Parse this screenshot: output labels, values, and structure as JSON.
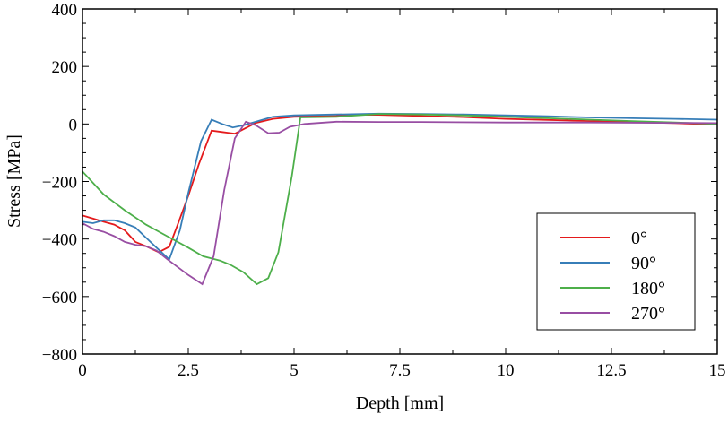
{
  "chart_data": {
    "type": "line",
    "title": "",
    "xlabel": "Depth [mm]",
    "ylabel": "Stress [MPa]",
    "xlim": [
      0,
      15
    ],
    "ylim": [
      -800,
      400
    ],
    "xticks": [
      0,
      2.5,
      5,
      7.5,
      10,
      12.5,
      15
    ],
    "xtick_labels": [
      "0",
      "2.5",
      "5",
      "7.5",
      "10",
      "12.5",
      "15"
    ],
    "yticks": [
      -800,
      -600,
      -400,
      -200,
      0,
      200,
      400
    ],
    "ytick_labels": [
      "−800",
      "−600",
      "−400",
      "−200",
      "0",
      "200",
      "400"
    ],
    "grid": false,
    "legend_placement": "lower-right",
    "series": [
      {
        "name": "0°",
        "color": "#e41a1c",
        "x": [
          0,
          0.5,
          0.75,
          1,
          1.25,
          1.5,
          1.8,
          2.05,
          2.25,
          2.5,
          2.75,
          3.05,
          3.3,
          3.6,
          3.85,
          4.1,
          4.5,
          5,
          6,
          6.5,
          7,
          8,
          9,
          10,
          11,
          12,
          13,
          14,
          15
        ],
        "y": [
          -318,
          -340,
          -350,
          -370,
          -410,
          -425,
          -446,
          -427,
          -350,
          -250,
          -140,
          -23,
          -28,
          -34,
          -15,
          4,
          18,
          25,
          28,
          32,
          32,
          28,
          24,
          18,
          14,
          10,
          6,
          3,
          -2
        ]
      },
      {
        "name": "90°",
        "color": "#377eb8",
        "x": [
          0,
          0.25,
          0.5,
          0.75,
          1,
          1.25,
          1.5,
          1.75,
          2.05,
          2.3,
          2.5,
          2.8,
          3.05,
          3.3,
          3.55,
          3.8,
          4.1,
          4.5,
          5,
          6,
          7,
          8,
          9,
          10,
          11,
          12,
          13,
          14,
          15
        ],
        "y": [
          -340,
          -345,
          -335,
          -335,
          -345,
          -360,
          -395,
          -430,
          -471,
          -370,
          -240,
          -60,
          15,
          0,
          -12,
          -5,
          8,
          25,
          30,
          33,
          36,
          35,
          33,
          30,
          27,
          23,
          20,
          18,
          15
        ]
      },
      {
        "name": "180°",
        "color": "#4daf4a",
        "x": [
          0,
          0.5,
          1,
          1.5,
          2,
          2.5,
          2.85,
          3.25,
          3.5,
          3.8,
          4.12,
          4.39,
          4.63,
          4.95,
          5.15,
          6,
          7,
          8,
          9,
          10,
          11,
          12,
          13,
          14,
          15
        ],
        "y": [
          -165,
          -245,
          -300,
          -350,
          -390,
          -430,
          -460,
          -475,
          -490,
          -515,
          -557,
          -536,
          -446,
          -180,
          23,
          25,
          35,
          33,
          30,
          25,
          20,
          15,
          10,
          5,
          0
        ]
      },
      {
        "name": "270°",
        "color": "#984ea3",
        "x": [
          0,
          0.25,
          0.5,
          0.75,
          1,
          1.25,
          1.5,
          1.75,
          2,
          2.5,
          2.83,
          3.1,
          3.35,
          3.6,
          3.86,
          4.1,
          4.39,
          4.65,
          4.9,
          5.25,
          6,
          7,
          8,
          10,
          12,
          15
        ],
        "y": [
          -345,
          -365,
          -375,
          -390,
          -410,
          -420,
          -425,
          -440,
          -470,
          -525,
          -557,
          -460,
          -230,
          -50,
          8,
          -5,
          -32,
          -30,
          -10,
          0,
          8,
          7,
          7,
          5,
          5,
          3
        ]
      }
    ]
  }
}
